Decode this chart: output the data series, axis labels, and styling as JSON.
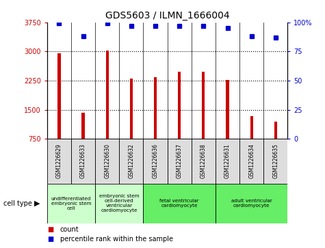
{
  "title": "GDS5603 / ILMN_1666004",
  "samples": [
    "GSM1226629",
    "GSM1226633",
    "GSM1226630",
    "GSM1226632",
    "GSM1226636",
    "GSM1226637",
    "GSM1226638",
    "GSM1226631",
    "GSM1226634",
    "GSM1226635"
  ],
  "counts": [
    2950,
    1430,
    3020,
    2310,
    2330,
    2470,
    2480,
    2270,
    1340,
    1200
  ],
  "percentiles": [
    99,
    88,
    99,
    97,
    97,
    97,
    97,
    95,
    88,
    87
  ],
  "ylim_left": [
    750,
    3750
  ],
  "yticks_left": [
    750,
    1500,
    2250,
    3000,
    3750
  ],
  "ylim_right": [
    0,
    100
  ],
  "yticks_right": [
    0,
    25,
    50,
    75,
    100
  ],
  "bar_color": "#cc0000",
  "dot_color": "#0000cc",
  "cell_types": [
    {
      "label": "undifferentiated\nembryonic stem\ncell",
      "span": [
        0,
        2
      ],
      "color": "#ccffcc"
    },
    {
      "label": "embryonic stem\ncell-derived\nventricular\ncardiomyocyte",
      "span": [
        2,
        4
      ],
      "color": "#ccffcc"
    },
    {
      "label": "fetal ventricular\ncardiomyocyte",
      "span": [
        4,
        7
      ],
      "color": "#66ee66"
    },
    {
      "label": "adult ventricular\ncardiomyocyte",
      "span": [
        7,
        10
      ],
      "color": "#66ee66"
    }
  ],
  "legend_count_label": "count",
  "legend_percentile_label": "percentile rank within the sample",
  "cell_type_label": "cell type",
  "title_fontsize": 10
}
